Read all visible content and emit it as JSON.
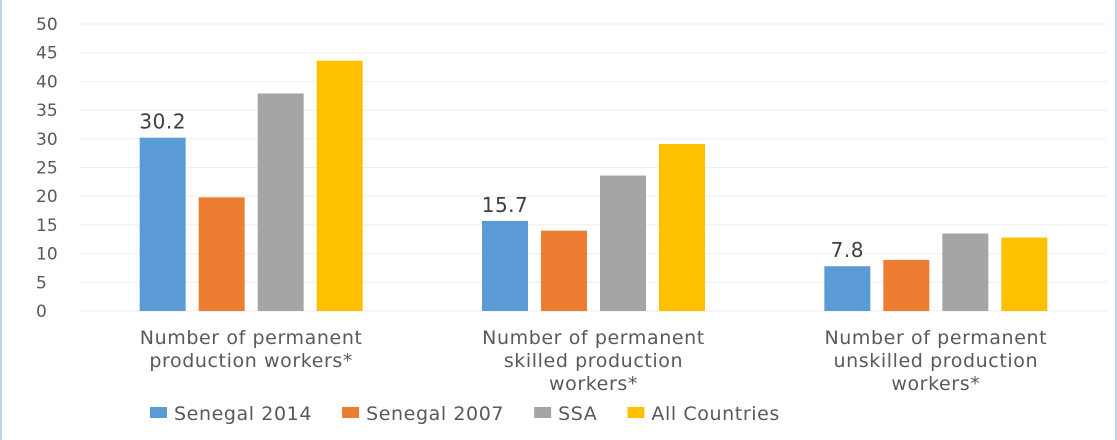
{
  "chart_data": {
    "type": "bar",
    "categories": [
      [
        "Number of permanent",
        "production workers*"
      ],
      [
        "Number of permanent",
        "skilled production",
        "workers*"
      ],
      [
        "Number of permanent",
        "unskilled production",
        "workers*"
      ]
    ],
    "series": [
      {
        "name": "Senegal 2014",
        "color": "#5B9BD5",
        "values": [
          30.2,
          15.7,
          7.8
        ]
      },
      {
        "name": "Senegal 2007",
        "color": "#ED7D31",
        "values": [
          19.8,
          14.0,
          8.9
        ]
      },
      {
        "name": "SSA",
        "color": "#A5A5A5",
        "values": [
          37.9,
          23.6,
          13.5
        ]
      },
      {
        "name": "All Countries",
        "color": "#FFC000",
        "values": [
          43.6,
          29.1,
          12.8
        ]
      }
    ],
    "data_labels": {
      "series_index": 0,
      "texts": [
        "30.2",
        "15.7",
        "7.8"
      ]
    },
    "y_ticks": [
      "0",
      "5",
      "10",
      "15",
      "20",
      "25",
      "30",
      "35",
      "40",
      "45",
      "50"
    ],
    "ylim": [
      0,
      50
    ],
    "grid": true,
    "legend": "bottom",
    "title": "",
    "xlabel": "",
    "ylabel": ""
  }
}
